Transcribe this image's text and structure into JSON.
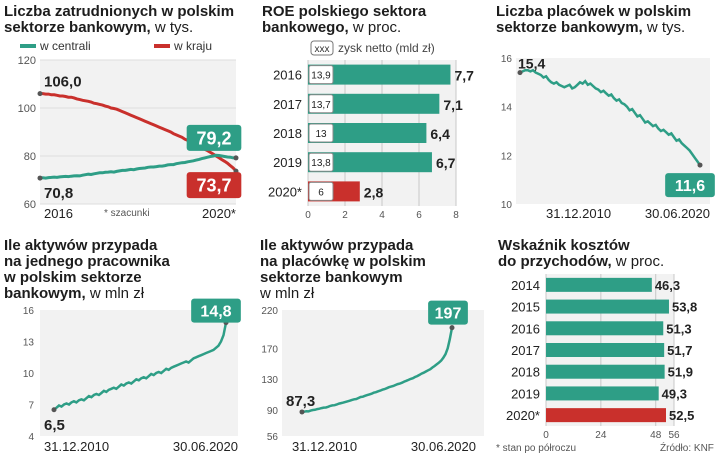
{
  "colors": {
    "teal": "#2e9e86",
    "red": "#c9302c",
    "bg": "#f2f2f2",
    "grid": "#c8c8c8",
    "label_bg": "#2e9e86"
  },
  "panels": {
    "p1": {
      "title_lines": [
        "Liczba zatrudnionych w polskim",
        "sektorze bankowym,"
      ],
      "subtitle": "w tys.",
      "legend": [
        {
          "name": "w centrali",
          "color": "#2e9e86"
        },
        {
          "name": "w kraju",
          "color": "#c9302c"
        }
      ]
    },
    "p2": {
      "title_lines": [
        "ROE polskiego sektora",
        "bankowego,"
      ],
      "subtitle": "w proc.",
      "legend_box": "xxx",
      "legend_text": "zysk netto (mld zł)"
    },
    "p3": {
      "title_lines": [
        "Liczba placówek w polskim",
        "sektorze bankowym,"
      ],
      "subtitle": "w tys."
    },
    "p4": {
      "title_lines": [
        "Ile aktywów przypada",
        "na jednego pracownika",
        "w polskim sektorze",
        "bankowym,"
      ],
      "subtitle": "w mln zł"
    },
    "p5": {
      "title_lines": [
        "Ile aktywów przypada",
        "na placówkę w polskim",
        "sektorze bankowym"
      ],
      "subtitle": "w mln zł"
    },
    "p6": {
      "title_lines": [
        "Wskaźnik kosztów",
        "do przychodów,"
      ],
      "subtitle": "w proc."
    }
  },
  "chart_data": [
    {
      "id": "employment",
      "type": "line",
      "ylim": [
        60,
        120
      ],
      "yticks": [
        "120",
        "100",
        "80",
        "60"
      ],
      "xlabels": [
        "2016",
        "2020*"
      ],
      "note": "* szacunki",
      "series": [
        {
          "name": "w kraju",
          "color": "#c9302c",
          "start": 106.0,
          "end": 73.7,
          "start_label": "106,0",
          "end_label": "73,7",
          "values": [
            106.0,
            106.0,
            105.8,
            105.8,
            105.5,
            105.5,
            105.3,
            105.0,
            105.0,
            104.8,
            104.5,
            104.5,
            104.2,
            103.8,
            103.5,
            103.2,
            103.0,
            102.8,
            102.5,
            102.0,
            101.8,
            101.5,
            101.2,
            100.8,
            100.5,
            100.0,
            99.8,
            99.5,
            99.0,
            98.5,
            98.0,
            97.5,
            97.0,
            96.5,
            96.0,
            95.5,
            95.0,
            94.5,
            94.0,
            93.5,
            93.0,
            92.5,
            92.0,
            91.5,
            91.0,
            90.5,
            90.0,
            89.3,
            88.8,
            88.3,
            87.8,
            87.0,
            86.5,
            86.0,
            85.3,
            84.7,
            84.0,
            83.4,
            82.8,
            82.2,
            81.5,
            80.8,
            80.0,
            79.3,
            78.5,
            77.8,
            77.0,
            76.0,
            75.0,
            73.7
          ]
        },
        {
          "name": "w centrali",
          "color": "#2e9e86",
          "start": 70.8,
          "end": 79.2,
          "start_label": "70,8",
          "end_label": "79,2",
          "values": [
            70.8,
            70.9,
            70.8,
            71.0,
            71.1,
            71.2,
            71.1,
            71.3,
            71.4,
            71.5,
            71.4,
            71.6,
            71.7,
            71.8,
            71.7,
            72.0,
            72.2,
            72.4,
            72.3,
            72.6,
            72.8,
            73.0,
            73.0,
            73.2,
            73.3,
            73.4,
            73.3,
            73.6,
            73.8,
            74.0,
            74.0,
            74.2,
            74.4,
            74.3,
            74.6,
            74.8,
            74.9,
            75.0,
            75.3,
            75.4,
            75.4,
            75.6,
            75.8,
            75.8,
            76.0,
            76.3,
            76.4,
            76.4,
            76.8,
            77.0,
            77.2,
            77.3,
            77.6,
            77.8,
            78.0,
            78.3,
            78.6,
            78.9,
            79.2,
            79.5,
            79.8,
            80.0,
            80.3,
            80.2,
            80.0,
            79.8,
            79.6,
            79.5,
            79.2,
            79.2
          ]
        }
      ]
    },
    {
      "id": "roe",
      "type": "bar",
      "categories": [
        "2016",
        "2017",
        "2018",
        "2019",
        "2020*"
      ],
      "values": [
        7.7,
        7.1,
        6.4,
        6.7,
        2.8
      ],
      "value_labels": [
        "7,7",
        "7,1",
        "6,4",
        "6,7",
        "2,8"
      ],
      "profit": [
        "13,9",
        "13,7",
        "13",
        "13,8",
        "6"
      ],
      "highlight": [
        false,
        false,
        false,
        false,
        true
      ],
      "xlim": [
        0,
        8
      ],
      "xticks": [
        "0",
        "2",
        "4",
        "6",
        "8"
      ]
    },
    {
      "id": "branches",
      "type": "line",
      "ylim": [
        10,
        16
      ],
      "yticks": [
        "16",
        "14",
        "12",
        "10"
      ],
      "xlabels": [
        "31.12.2010",
        "30.06.2020"
      ],
      "start_label": "15,4",
      "end_label": "11,6",
      "values": [
        15.4,
        15.45,
        15.5,
        15.5,
        15.45,
        15.5,
        15.4,
        15.35,
        15.3,
        15.2,
        15.25,
        15.1,
        15.0,
        14.95,
        15.0,
        14.9,
        14.85,
        14.8,
        14.85,
        14.9,
        14.75,
        14.8,
        14.9,
        15.0,
        14.95,
        15.05,
        14.9,
        14.95,
        14.85,
        14.75,
        14.7,
        14.6,
        14.65,
        14.55,
        14.45,
        14.5,
        14.35,
        14.25,
        14.3,
        14.15,
        14.1,
        14.0,
        13.85,
        13.9,
        13.75,
        13.6,
        13.65,
        13.5,
        13.35,
        13.4,
        13.3,
        13.2,
        13.25,
        13.1,
        13.0,
        13.05,
        12.95,
        12.85,
        12.9,
        12.75,
        12.6,
        12.65,
        12.5,
        12.4,
        12.3,
        12.2,
        12.05,
        11.9,
        11.75,
        11.6
      ]
    },
    {
      "id": "assets_per_employee",
      "type": "line",
      "ylim": [
        4,
        16
      ],
      "yticks": [
        "16",
        "13",
        "10",
        "7",
        "4"
      ],
      "xlabels": [
        "31.12.2010",
        "30.06.2020"
      ],
      "start_label": "6,5",
      "end_label": "14,8",
      "values": [
        6.5,
        6.7,
        6.9,
        6.8,
        7.0,
        7.1,
        7.0,
        7.2,
        7.3,
        7.2,
        7.4,
        7.5,
        7.4,
        7.6,
        7.8,
        7.7,
        7.9,
        8.0,
        7.9,
        8.1,
        8.3,
        8.2,
        8.4,
        8.5,
        8.6,
        8.5,
        8.7,
        8.9,
        8.8,
        9.0,
        9.1,
        9.0,
        9.2,
        9.4,
        9.3,
        9.5,
        9.6,
        9.5,
        9.7,
        9.9,
        9.8,
        10.0,
        10.1,
        10.0,
        10.2,
        10.4,
        10.3,
        10.5,
        10.6,
        10.7,
        10.8,
        10.9,
        11.0,
        11.1,
        11.0,
        11.2,
        11.4,
        11.5,
        11.6,
        11.7,
        11.8,
        11.9,
        12.0,
        12.1,
        12.2,
        12.4,
        12.6,
        13.0,
        13.6,
        14.8
      ]
    },
    {
      "id": "assets_per_branch",
      "type": "line",
      "ylim": [
        56,
        220
      ],
      "yticks": [
        "220",
        "170",
        "130",
        "90",
        "56"
      ],
      "xlabels": [
        "31.12.2010",
        "30.06.2020"
      ],
      "start_label": "87,3",
      "end_label": "197",
      "values": [
        87.3,
        87.6,
        88.2,
        88.0,
        89.1,
        89.8,
        90.1,
        91.0,
        91.5,
        92.3,
        93.0,
        93.1,
        94.0,
        95.2,
        95.8,
        96.1,
        97.0,
        98.2,
        98.8,
        99.5,
        100.4,
        101.2,
        101.9,
        103.0,
        103.8,
        104.2,
        105.5,
        106.8,
        107.1,
        108.3,
        109.2,
        110.1,
        111.0,
        112.3,
        113.0,
        114.2,
        115.1,
        116.3,
        117.0,
        118.2,
        119.5,
        120.3,
        121.1,
        122.4,
        123.6,
        124.2,
        125.4,
        126.8,
        127.9,
        129.0,
        130.3,
        131.2,
        132.8,
        134.0,
        135.5,
        137.2,
        138.4,
        140.0,
        141.5,
        143.0,
        145.2,
        147.1,
        149.3,
        151.5,
        154.0,
        157.8,
        162.5,
        170.2,
        182.0,
        197.0
      ]
    },
    {
      "id": "cost_income",
      "type": "bar",
      "categories": [
        "2014",
        "2015",
        "2016",
        "2017",
        "2018",
        "2019",
        "2020*"
      ],
      "values": [
        46.3,
        53.8,
        51.3,
        51.7,
        51.9,
        49.3,
        52.5
      ],
      "value_labels": [
        "46,3",
        "53,8",
        "51,3",
        "51,7",
        "51,9",
        "49,3",
        "52,5"
      ],
      "highlight": [
        false,
        false,
        false,
        false,
        false,
        false,
        true
      ],
      "xlim": [
        0,
        56
      ],
      "xticks": [
        "0",
        "24",
        "48",
        "56"
      ],
      "tick_values": [
        0,
        24,
        48,
        56
      ],
      "note": "* stan po półroczu"
    }
  ],
  "footer": {
    "source": "Źródło: KNF"
  }
}
